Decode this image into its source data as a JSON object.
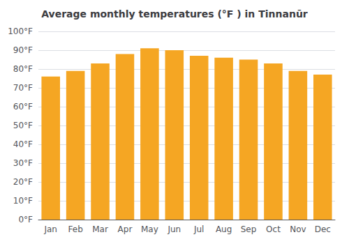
{
  "chart_data": {
    "type": "bar",
    "title": "Average monthly temperatures (°F ) in Tinnanūr",
    "categories": [
      "Jan",
      "Feb",
      "Mar",
      "Apr",
      "May",
      "Jun",
      "Jul",
      "Aug",
      "Sep",
      "Oct",
      "Nov",
      "Dec"
    ],
    "values": [
      76,
      79,
      83,
      88,
      91,
      90,
      87,
      86,
      85,
      83,
      79,
      77
    ],
    "color": "#F5A623",
    "ylim": [
      0,
      100
    ],
    "yticks": [
      {
        "value": 0,
        "label": "0°F"
      },
      {
        "value": 10,
        "label": "10°F"
      },
      {
        "value": 20,
        "label": "20°F"
      },
      {
        "value": 30,
        "label": "30°F"
      },
      {
        "value": 40,
        "label": "40°F"
      },
      {
        "value": 50,
        "label": "50°F"
      },
      {
        "value": 60,
        "label": "60°F"
      },
      {
        "value": 70,
        "label": "70°F"
      },
      {
        "value": 80,
        "label": "80°F"
      },
      {
        "value": 90,
        "label": "90°F"
      },
      {
        "value": 100,
        "label": "100°F"
      }
    ],
    "grid": true
  }
}
